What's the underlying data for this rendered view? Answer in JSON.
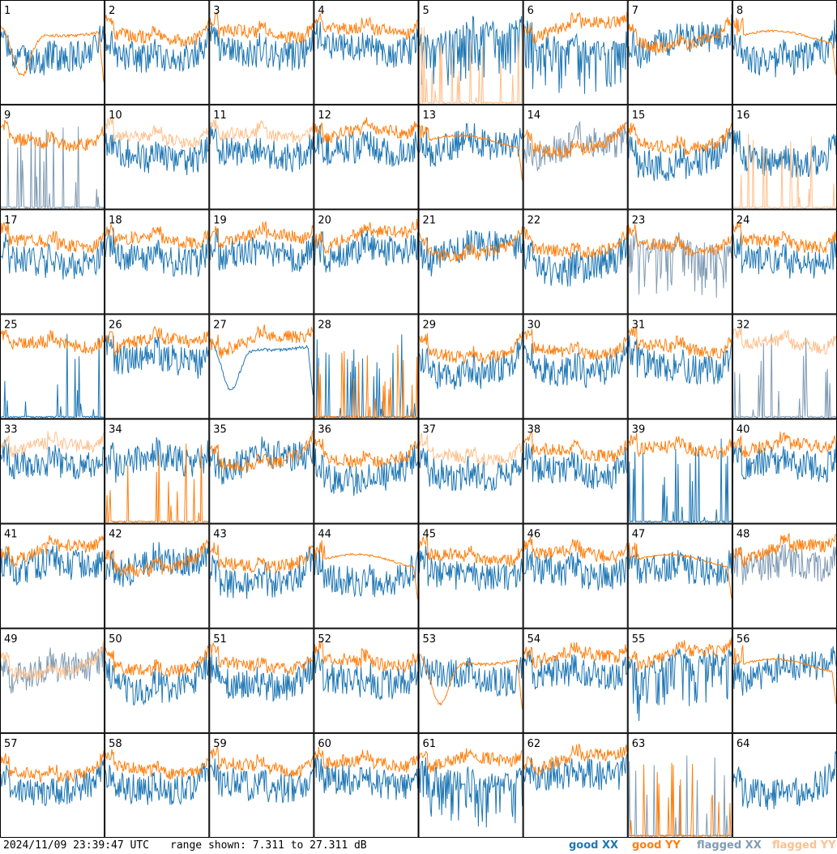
{
  "footer": {
    "timestamp": "2024/11/09 23:39:47 UTC",
    "range_text": "range shown: 7.311 to 27.311 dB"
  },
  "legend": [
    {
      "label": "good XX",
      "color": "#1f77b4"
    },
    {
      "label": "good YY",
      "color": "#ff7f0e"
    },
    {
      "label": "flagged XX",
      "color": "#7f9bb4"
    },
    {
      "label": "flagged YY",
      "color": "#ffc08c"
    }
  ],
  "chart_data": {
    "type": "line",
    "title": "",
    "y_unit": "dB",
    "ylim": [
      7.311,
      27.311
    ],
    "grid_layout": {
      "rows": 8,
      "cols": 8
    },
    "series_styles": {
      "good_XX": "#1f77b4",
      "good_YY": "#ff7f0e",
      "flagged_XX": "#7f9bb4",
      "flagged_YY": "#ffc08c"
    },
    "panels": [
      {
        "label": "1",
        "xx": "good",
        "yy": "good",
        "yy_shape": "dip"
      },
      {
        "label": "2",
        "xx": "good",
        "yy": "good"
      },
      {
        "label": "3",
        "xx": "good",
        "yy": "good"
      },
      {
        "label": "4",
        "xx": "good",
        "yy": "good"
      },
      {
        "label": "5",
        "xx": "good",
        "yy": "flagged",
        "yy_shape": "spikes",
        "xx_shape": "deep"
      },
      {
        "label": "6",
        "xx": "good",
        "yy": "good",
        "xx_shape": "deep"
      },
      {
        "label": "7",
        "xx": "good",
        "yy": "good"
      },
      {
        "label": "8",
        "xx": "good",
        "yy": "good",
        "yy_shape": "smooth"
      },
      {
        "label": "9",
        "xx": "flagged",
        "yy": "good",
        "xx_shape": "spikes"
      },
      {
        "label": "10",
        "xx": "good",
        "yy": "flagged"
      },
      {
        "label": "11",
        "xx": "good",
        "yy": "flagged"
      },
      {
        "label": "12",
        "xx": "good",
        "yy": "good"
      },
      {
        "label": "13",
        "xx": "good",
        "yy": "good",
        "yy_shape": "smooth"
      },
      {
        "label": "14",
        "xx": "flagged",
        "yy": "good"
      },
      {
        "label": "15",
        "xx": "good",
        "yy": "good"
      },
      {
        "label": "16",
        "xx": "good",
        "yy": "flagged",
        "yy_shape": "spikes"
      },
      {
        "label": "17",
        "xx": "good",
        "yy": "good"
      },
      {
        "label": "18",
        "xx": "good",
        "yy": "good"
      },
      {
        "label": "19",
        "xx": "good",
        "yy": "good"
      },
      {
        "label": "20",
        "xx": "good",
        "yy": "good"
      },
      {
        "label": "21",
        "xx": "good",
        "yy": "good"
      },
      {
        "label": "22",
        "xx": "good",
        "yy": "good"
      },
      {
        "label": "23",
        "xx": "flagged",
        "yy": "good",
        "xx_shape": "deep"
      },
      {
        "label": "24",
        "xx": "good",
        "yy": "good"
      },
      {
        "label": "25",
        "xx": "good",
        "yy": "good",
        "xx_shape": "spikes"
      },
      {
        "label": "26",
        "xx": "good",
        "yy": "good"
      },
      {
        "label": "27",
        "xx": "good",
        "yy": "good",
        "xx_shape": "dip"
      },
      {
        "label": "28",
        "xx": "good",
        "yy": "good",
        "xx_shape": "spikes",
        "yy_shape": "spikes"
      },
      {
        "label": "29",
        "xx": "good",
        "yy": "good"
      },
      {
        "label": "30",
        "xx": "good",
        "yy": "good"
      },
      {
        "label": "31",
        "xx": "good",
        "yy": "good"
      },
      {
        "label": "32",
        "xx": "flagged",
        "yy": "flagged",
        "xx_shape": "spikes"
      },
      {
        "label": "33",
        "xx": "good",
        "yy": "flagged"
      },
      {
        "label": "34",
        "xx": "good",
        "yy": "good",
        "yy_shape": "spikes"
      },
      {
        "label": "35",
        "xx": "good",
        "yy": "good"
      },
      {
        "label": "36",
        "xx": "good",
        "yy": "good"
      },
      {
        "label": "37",
        "xx": "good",
        "yy": "flagged"
      },
      {
        "label": "38",
        "xx": "good",
        "yy": "good"
      },
      {
        "label": "39",
        "xx": "good",
        "yy": "good",
        "xx_shape": "spikes"
      },
      {
        "label": "40",
        "xx": "good",
        "yy": "good"
      },
      {
        "label": "41",
        "xx": "good",
        "yy": "good"
      },
      {
        "label": "42",
        "xx": "good",
        "yy": "good"
      },
      {
        "label": "43",
        "xx": "good",
        "yy": "good"
      },
      {
        "label": "44",
        "xx": "good",
        "yy": "good",
        "yy_shape": "smooth"
      },
      {
        "label": "45",
        "xx": "good",
        "yy": "good"
      },
      {
        "label": "46",
        "xx": "good",
        "yy": "good"
      },
      {
        "label": "47",
        "xx": "good",
        "yy": "good",
        "yy_shape": "smooth"
      },
      {
        "label": "48",
        "xx": "flagged",
        "yy": "good"
      },
      {
        "label": "49",
        "xx": "flagged",
        "yy": "flagged"
      },
      {
        "label": "50",
        "xx": "good",
        "yy": "good"
      },
      {
        "label": "51",
        "xx": "good",
        "yy": "good"
      },
      {
        "label": "52",
        "xx": "good",
        "yy": "good"
      },
      {
        "label": "53",
        "xx": "good",
        "yy": "good",
        "yy_shape": "dip"
      },
      {
        "label": "54",
        "xx": "good",
        "yy": "good"
      },
      {
        "label": "55",
        "xx": "good",
        "yy": "good",
        "xx_shape": "deep"
      },
      {
        "label": "56",
        "xx": "good",
        "yy": "good",
        "yy_shape": "smooth"
      },
      {
        "label": "57",
        "xx": "good",
        "yy": "good"
      },
      {
        "label": "58",
        "xx": "good",
        "yy": "good"
      },
      {
        "label": "59",
        "xx": "good",
        "yy": "good"
      },
      {
        "label": "60",
        "xx": "good",
        "yy": "good"
      },
      {
        "label": "61",
        "xx": "good",
        "yy": "good",
        "xx_shape": "deep"
      },
      {
        "label": "62",
        "xx": "good",
        "yy": "good"
      },
      {
        "label": "63",
        "xx": "flagged",
        "yy": "good",
        "xx_shape": "spikes",
        "yy_shape": "spikes"
      },
      {
        "label": "64",
        "xx": "good",
        "yy": "none"
      }
    ]
  }
}
